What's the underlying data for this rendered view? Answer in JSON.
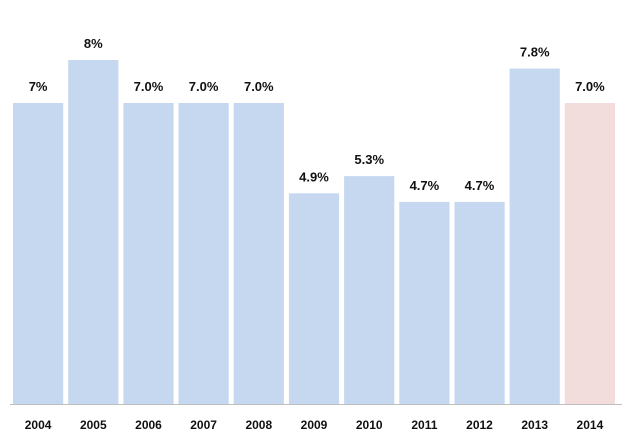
{
  "chart_data": {
    "type": "bar",
    "categories": [
      "2004",
      "2005",
      "2006",
      "2007",
      "2008",
      "2009",
      "2010",
      "2011",
      "2012",
      "2013",
      "2014"
    ],
    "values": [
      7.0,
      8.0,
      7.0,
      7.0,
      7.0,
      4.9,
      5.3,
      4.7,
      4.7,
      7.8,
      7.0
    ],
    "data_labels": [
      "7%",
      "8%",
      "7.0%",
      "7.0%",
      "7.0%",
      "4.9%",
      "5.3%",
      "4.7%",
      "4.7%",
      "7.8%",
      "7.0%"
    ],
    "title": "",
    "xlabel": "",
    "ylabel": "",
    "ylim": [
      0,
      8
    ],
    "grid": false,
    "legend": "none",
    "colors": {
      "bar": "#c6d8f0",
      "highlight_bar": "#f2dcdc",
      "axis": "#bfbfbf"
    },
    "highlight_index": 10
  }
}
